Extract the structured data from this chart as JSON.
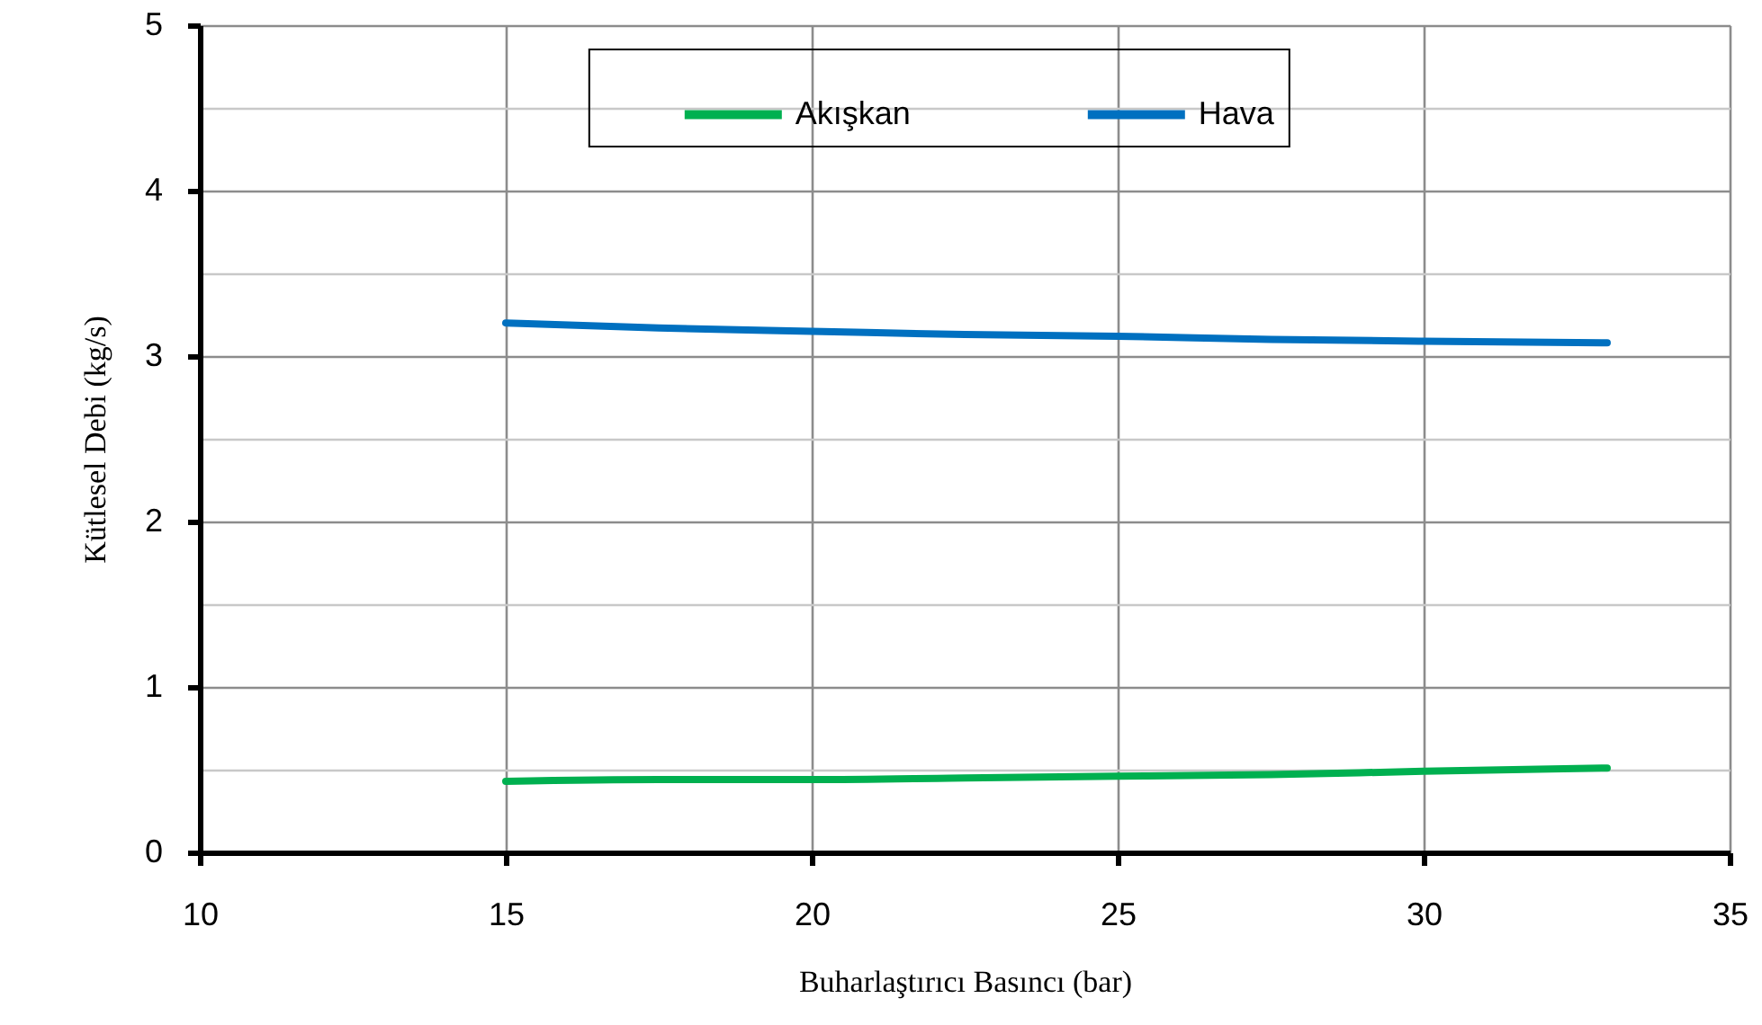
{
  "chart_data": {
    "type": "line",
    "xlabel": "Buharlaştırıcı Basıncı (bar)",
    "ylabel": "Kütlesel Debi (kg/s)",
    "x": [
      15,
      17.5,
      20,
      22.5,
      25,
      27.5,
      30,
      33
    ],
    "series": [
      {
        "name": "Akışkan",
        "color": "#00b050",
        "values": [
          0.43,
          0.44,
          0.44,
          0.45,
          0.46,
          0.47,
          0.49,
          0.51
        ]
      },
      {
        "name": "Hava",
        "color": "#0070c0",
        "values": [
          3.2,
          3.17,
          3.15,
          3.13,
          3.12,
          3.1,
          3.09,
          3.08
        ]
      }
    ],
    "xlim": [
      10,
      35
    ],
    "xticks": [
      10,
      15,
      20,
      25,
      30,
      35
    ],
    "ylim": [
      0,
      5
    ],
    "yticks": [
      0,
      {
        "value": 0.5,
        "label": null
      },
      1,
      {
        "value": 1.5,
        "label": null
      },
      2,
      {
        "value": 2.5,
        "label": null
      },
      3,
      {
        "value": 3.5,
        "label": null
      },
      4,
      {
        "value": 4.5,
        "label": null
      },
      5
    ],
    "grid": true,
    "legend": "top",
    "marker": "none",
    "line_style": "solid"
  }
}
